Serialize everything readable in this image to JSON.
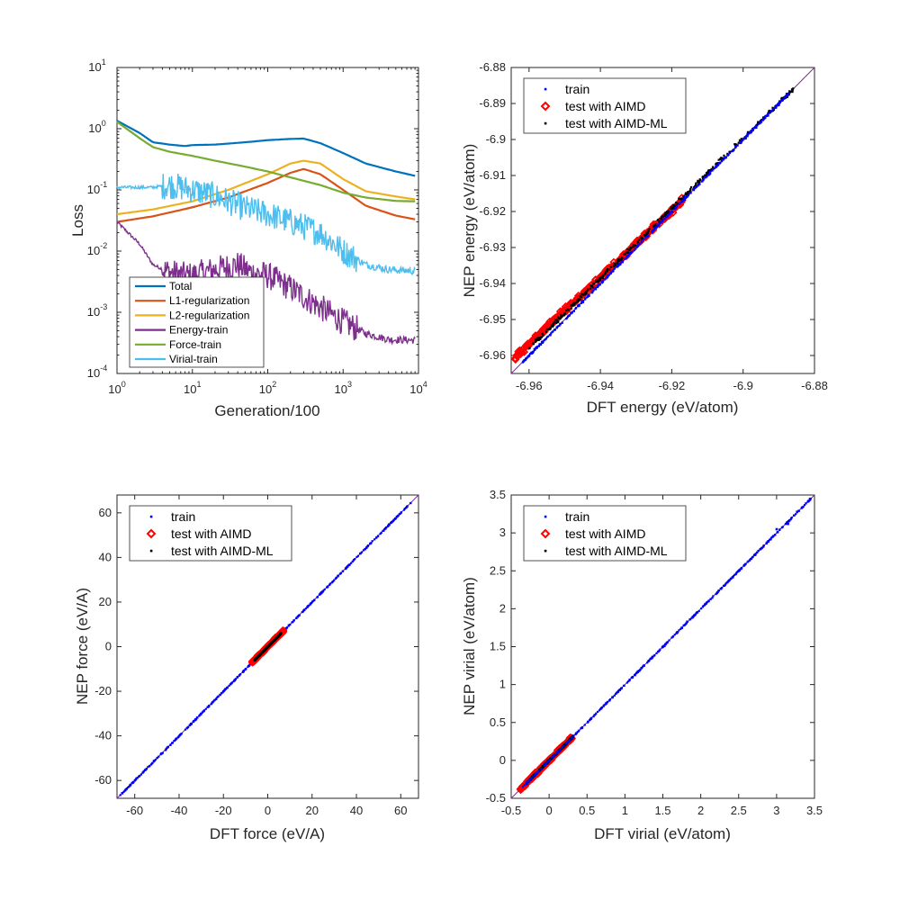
{
  "chart_data": [
    {
      "type": "line",
      "id": "loss",
      "xscale": "log",
      "yscale": "log",
      "xlim": [
        1,
        10000
      ],
      "ylim": [
        0.0001,
        10
      ],
      "xlabel": "Generation/100",
      "ylabel": "Loss",
      "xtick_labels": [
        {
          "base": "10",
          "exp": "0"
        },
        {
          "base": "10",
          "exp": "1"
        },
        {
          "base": "10",
          "exp": "2"
        },
        {
          "base": "10",
          "exp": "3"
        },
        {
          "base": "10",
          "exp": "4"
        }
      ],
      "ytick_labels": [
        {
          "base": "10",
          "exp": "-4"
        },
        {
          "base": "10",
          "exp": "-3"
        },
        {
          "base": "10",
          "exp": "-2"
        },
        {
          "base": "10",
          "exp": "-1"
        },
        {
          "base": "10",
          "exp": "0"
        },
        {
          "base": "10",
          "exp": "1"
        }
      ],
      "legend_position": "bottom-left",
      "series": [
        {
          "name": "Total",
          "color": "#0072BD",
          "noisy": false,
          "x": [
            1,
            2,
            3,
            5,
            8,
            10,
            20,
            50,
            100,
            200,
            300,
            500,
            1000,
            2000,
            5000,
            9000
          ],
          "y": [
            1.35,
            0.85,
            0.6,
            0.55,
            0.52,
            0.54,
            0.55,
            0.6,
            0.65,
            0.68,
            0.69,
            0.58,
            0.4,
            0.27,
            0.2,
            0.17
          ]
        },
        {
          "name": "L1-regularization",
          "color": "#D95319",
          "noisy": false,
          "x": [
            1,
            3,
            10,
            30,
            100,
            200,
            300,
            500,
            1000,
            2000,
            5000,
            9000
          ],
          "y": [
            0.03,
            0.037,
            0.052,
            0.075,
            0.13,
            0.19,
            0.22,
            0.18,
            0.1,
            0.055,
            0.038,
            0.033
          ]
        },
        {
          "name": "L2-regularization",
          "color": "#EDB120",
          "noisy": false,
          "x": [
            1,
            3,
            10,
            30,
            100,
            200,
            300,
            500,
            1000,
            2000,
            5000,
            9000
          ],
          "y": [
            0.04,
            0.048,
            0.065,
            0.1,
            0.18,
            0.27,
            0.3,
            0.27,
            0.15,
            0.095,
            0.078,
            0.07
          ]
        },
        {
          "name": "Energy-train",
          "color": "#7E2F8E",
          "noisy": true,
          "x": [
            1,
            2,
            3,
            5,
            8,
            10,
            20,
            40,
            60,
            100,
            200,
            300,
            500,
            1000,
            2000,
            4000,
            9000
          ],
          "y": [
            0.03,
            0.013,
            0.006,
            0.0045,
            0.004,
            0.004,
            0.005,
            0.006,
            0.0045,
            0.004,
            0.0025,
            0.0018,
            0.0012,
            0.0007,
            0.00045,
            0.00036,
            0.00035
          ]
        },
        {
          "name": "Force-train",
          "color": "#77AC30",
          "noisy": false,
          "x": [
            1,
            2,
            3,
            5,
            10,
            20,
            50,
            100,
            200,
            500,
            1000,
            2000,
            5000,
            9000
          ],
          "y": [
            1.3,
            0.7,
            0.5,
            0.42,
            0.36,
            0.3,
            0.24,
            0.2,
            0.16,
            0.12,
            0.09,
            0.075,
            0.066,
            0.065
          ]
        },
        {
          "name": "Virial-train",
          "color": "#4DBEEE",
          "noisy": true,
          "x": [
            1,
            3,
            5,
            10,
            20,
            50,
            100,
            200,
            500,
            1000,
            2000,
            4000,
            9000
          ],
          "y": [
            0.11,
            0.11,
            0.12,
            0.1,
            0.08,
            0.05,
            0.04,
            0.03,
            0.02,
            0.01,
            0.006,
            0.005,
            0.0047
          ]
        }
      ]
    },
    {
      "type": "scatter",
      "id": "energy",
      "xlim": [
        -6.965,
        -6.88
      ],
      "ylim": [
        -6.965,
        -6.88
      ],
      "xticks": [
        "-6.96",
        "-6.94",
        "-6.92",
        "-6.9",
        "-6.88"
      ],
      "yticks": [
        "-6.96",
        "-6.95",
        "-6.94",
        "-6.93",
        "-6.92",
        "-6.91",
        "-6.9",
        "-6.89",
        "-6.88"
      ],
      "xlabel": "DFT energy (eV/atom)",
      "ylabel": "NEP energy (eV/atom)",
      "legend_position": "top-left",
      "legend": [
        "train",
        "test with AIMD",
        "test with AIMD-ML"
      ],
      "series": [
        {
          "name": "test with AIMD",
          "color": "#FF0000",
          "marker": "diamond",
          "x_range": [
            -6.964,
            -6.917
          ],
          "offset": 0.0035,
          "spread": 0.0012
        },
        {
          "name": "test with AIMD-ML",
          "color": "#000000",
          "marker": "dot",
          "x_range": [
            -6.96,
            -6.886
          ],
          "offset": 0.002,
          "spread": 0.0009
        },
        {
          "name": "train",
          "color": "#0000FF",
          "marker": "dot",
          "x_range": [
            -6.962,
            -6.887
          ],
          "offset": 0.0,
          "spread": 0.0004
        }
      ]
    },
    {
      "type": "scatter",
      "id": "force",
      "xlim": [
        -68,
        68
      ],
      "ylim": [
        -68,
        68
      ],
      "xticks": [
        "-60",
        "-40",
        "-20",
        "0",
        "20",
        "40",
        "60"
      ],
      "yticks": [
        "-60",
        "-40",
        "-20",
        "0",
        "20",
        "40",
        "60"
      ],
      "xlabel": "DFT force (eV/A)",
      "ylabel": "NEP force (eV/A)",
      "legend_position": "top-left",
      "legend": [
        "train",
        "test with AIMD",
        "test with AIMD-ML"
      ],
      "series": [
        {
          "name": "train",
          "color": "#0000FF",
          "marker": "dot",
          "x_range": [
            -67,
            65
          ],
          "offset": 0,
          "spread": 0.3
        },
        {
          "name": "test with AIMD",
          "color": "#FF0000",
          "marker": "diamond",
          "x_range": [
            -7,
            7
          ],
          "offset": 0,
          "spread": 0.7
        },
        {
          "name": "test with AIMD-ML",
          "color": "#000000",
          "marker": "dot",
          "x_range": [
            -6,
            6
          ],
          "offset": 0,
          "spread": 0.4
        }
      ]
    },
    {
      "type": "scatter",
      "id": "virial",
      "xlim": [
        -0.5,
        3.5
      ],
      "ylim": [
        -0.5,
        3.5
      ],
      "xticks": [
        "-0.5",
        "0",
        "0.5",
        "1",
        "1.5",
        "2",
        "2.5",
        "3",
        "3.5"
      ],
      "yticks": [
        "-0.5",
        "0",
        "0.5",
        "1",
        "1.5",
        "2",
        "2.5",
        "3",
        "3.5"
      ],
      "xlabel": "DFT virial (eV/atom)",
      "ylabel": "NEP virial (eV/atom)",
      "legend_position": "top-left",
      "legend": [
        "train",
        "test with AIMD",
        "test with AIMD-ML"
      ],
      "series": [
        {
          "name": "test with AIMD",
          "color": "#FF0000",
          "marker": "diamond",
          "x_range": [
            -0.38,
            0.3
          ],
          "offset": 0,
          "spread": 0.03
        },
        {
          "name": "test with AIMD-ML",
          "color": "#000000",
          "marker": "dot",
          "x_range": [
            -0.3,
            0.32
          ],
          "offset": 0,
          "spread": 0.02
        },
        {
          "name": "train",
          "color": "#0000FF",
          "marker": "dot",
          "x_range": [
            -0.35,
            3.45
          ],
          "offset": 0,
          "spread": 0.01,
          "extra_points": [
            [
              0.95,
              0.95
            ],
            [
              1.1,
              1.1
            ],
            [
              1.25,
              1.25
            ],
            [
              1.5,
              1.5
            ],
            [
              1.52,
              1.51
            ],
            [
              1.75,
              1.75
            ],
            [
              1.82,
              1.83
            ],
            [
              3.0,
              3.05
            ],
            [
              3.15,
              3.12
            ],
            [
              3.27,
              3.28
            ],
            [
              3.44,
              3.45
            ]
          ]
        }
      ]
    }
  ]
}
